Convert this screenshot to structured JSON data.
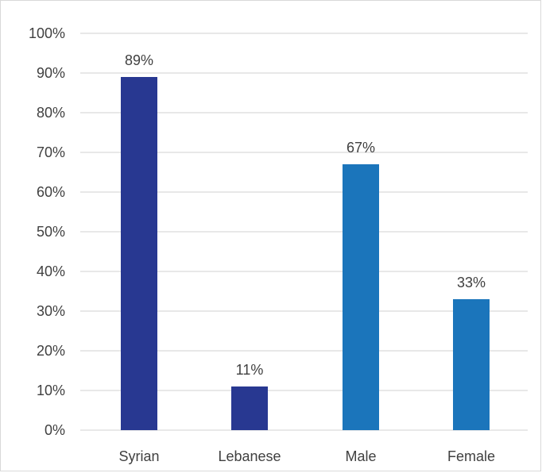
{
  "chart_data": {
    "type": "bar",
    "categories": [
      "Syrian",
      "Lebanese",
      "Male",
      "Female"
    ],
    "values": [
      89,
      11,
      67,
      33
    ],
    "data_labels": [
      "89%",
      "11%",
      "67%",
      "33%"
    ],
    "bar_colors": [
      "#283891",
      "#283891",
      "#1b75bb",
      "#1b75bb"
    ],
    "ylim": [
      0,
      100
    ],
    "y_ticks": [
      "0%",
      "10%",
      "20%",
      "30%",
      "40%",
      "50%",
      "60%",
      "70%",
      "80%",
      "90%",
      "100%"
    ],
    "grid": true,
    "gridline_color": "#d9d9d9",
    "legend": "none",
    "title": "",
    "xlabel": "",
    "ylabel": ""
  }
}
